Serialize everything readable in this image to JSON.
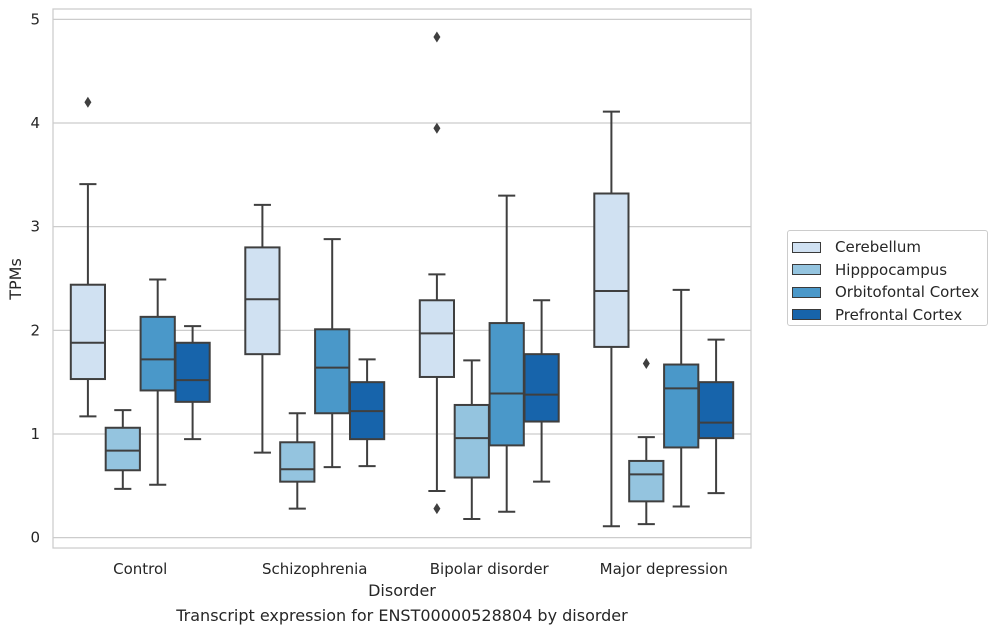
{
  "chart_data": {
    "type": "boxplot",
    "xlabel": "Disorder",
    "ylabel": "TPMs",
    "caption": "Transcript expression for ENST00000528804 by disorder",
    "categories": [
      "Control",
      "Schizophrenia",
      "Bipolar disorder",
      "Major depression"
    ],
    "ylim": [
      -0.1,
      5.1
    ],
    "yticks": [
      "0",
      "1",
      "2",
      "3",
      "4",
      "5"
    ],
    "grid": "horizontal",
    "legend_position": "right",
    "series": [
      {
        "name": "Cerebellum",
        "color": "#d0e1f2",
        "boxes": [
          {
            "whisker_low": 1.17,
            "q1": 1.53,
            "median": 1.88,
            "q3": 2.44,
            "whisker_high": 3.41,
            "outliers": [
              4.2
            ]
          },
          {
            "whisker_low": 0.82,
            "q1": 1.77,
            "median": 2.3,
            "q3": 2.8,
            "whisker_high": 3.21,
            "outliers": []
          },
          {
            "whisker_low": 0.45,
            "q1": 1.55,
            "median": 1.97,
            "q3": 2.29,
            "whisker_high": 2.54,
            "outliers": [
              4.83,
              3.95,
              0.28
            ]
          },
          {
            "whisker_low": 0.11,
            "q1": 1.84,
            "median": 2.38,
            "q3": 3.32,
            "whisker_high": 4.11,
            "outliers": []
          }
        ]
      },
      {
        "name": "Hipppocampus",
        "color": "#94c4df",
        "boxes": [
          {
            "whisker_low": 0.47,
            "q1": 0.65,
            "median": 0.84,
            "q3": 1.06,
            "whisker_high": 1.23,
            "outliers": []
          },
          {
            "whisker_low": 0.28,
            "q1": 0.54,
            "median": 0.66,
            "q3": 0.92,
            "whisker_high": 1.2,
            "outliers": []
          },
          {
            "whisker_low": 0.18,
            "q1": 0.58,
            "median": 0.96,
            "q3": 1.28,
            "whisker_high": 1.71,
            "outliers": []
          },
          {
            "whisker_low": 0.13,
            "q1": 0.35,
            "median": 0.61,
            "q3": 0.74,
            "whisker_high": 0.97,
            "outliers": [
              1.68
            ]
          }
        ]
      },
      {
        "name": "Orbitofontal Cortex",
        "color": "#4a98c9",
        "boxes": [
          {
            "whisker_low": 0.51,
            "q1": 1.42,
            "median": 1.72,
            "q3": 2.13,
            "whisker_high": 2.49,
            "outliers": []
          },
          {
            "whisker_low": 0.68,
            "q1": 1.2,
            "median": 1.64,
            "q3": 2.01,
            "whisker_high": 2.88,
            "outliers": []
          },
          {
            "whisker_low": 0.25,
            "q1": 0.89,
            "median": 1.39,
            "q3": 2.07,
            "whisker_high": 3.3,
            "outliers": []
          },
          {
            "whisker_low": 0.3,
            "q1": 0.87,
            "median": 1.44,
            "q3": 1.67,
            "whisker_high": 2.39,
            "outliers": []
          }
        ]
      },
      {
        "name": "Prefrontal Cortex",
        "color": "#1764ab",
        "boxes": [
          {
            "whisker_low": 0.95,
            "q1": 1.31,
            "median": 1.52,
            "q3": 1.88,
            "whisker_high": 2.04,
            "outliers": []
          },
          {
            "whisker_low": 0.69,
            "q1": 0.95,
            "median": 1.22,
            "q3": 1.5,
            "whisker_high": 1.72,
            "outliers": []
          },
          {
            "whisker_low": 0.54,
            "q1": 1.12,
            "median": 1.38,
            "q3": 1.77,
            "whisker_high": 2.29,
            "outliers": []
          },
          {
            "whisker_low": 0.43,
            "q1": 0.96,
            "median": 1.11,
            "q3": 1.5,
            "whisker_high": 1.91,
            "outliers": []
          }
        ]
      }
    ]
  }
}
